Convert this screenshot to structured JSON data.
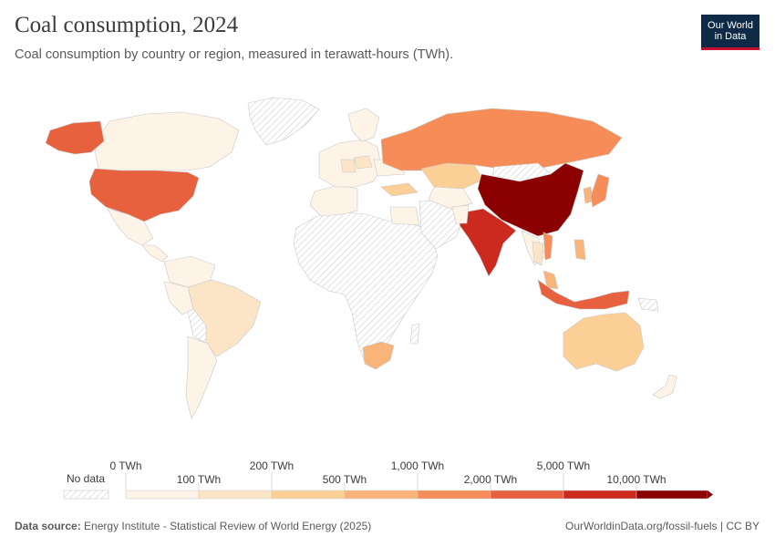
{
  "header": {
    "title": "Coal consumption, 2024",
    "subtitle": "Coal consumption by country or region, measured in terawatt-hours (TWh).",
    "logo_line1": "Our World",
    "logo_line2": "in Data"
  },
  "legend": {
    "no_data_label": "No data",
    "bins": [
      {
        "label": "0 TWh",
        "color": "#fdf3e7"
      },
      {
        "label": "100 TWh",
        "color": "#fce5c6"
      },
      {
        "label": "200 TWh",
        "color": "#fbcf96"
      },
      {
        "label": "500 TWh",
        "color": "#f9b47a"
      },
      {
        "label": "1,000 TWh",
        "color": "#f68d58"
      },
      {
        "label": "2,000 TWh",
        "color": "#e8613f"
      },
      {
        "label": "5,000 TWh",
        "color": "#cc2a1e"
      },
      {
        "label": "10,000 TWh",
        "color": "#8b0000"
      }
    ]
  },
  "colors": {
    "no_data": "#eeeeee",
    "border": "#c9c9c9",
    "text": "#3b3b3b"
  },
  "regions": [
    {
      "name": "China",
      "color": "#8b0000"
    },
    {
      "name": "India",
      "color": "#cc2a1e"
    },
    {
      "name": "United States",
      "color": "#e8613f"
    },
    {
      "name": "Indonesia",
      "color": "#e8613f"
    },
    {
      "name": "Russia",
      "color": "#f68d58"
    },
    {
      "name": "Japan",
      "color": "#f68d58"
    },
    {
      "name": "South Africa",
      "color": "#f9b47a"
    },
    {
      "name": "Australia",
      "color": "#fbcf96"
    },
    {
      "name": "Kazakhstan",
      "color": "#fbcf96"
    },
    {
      "name": "Vietnam",
      "color": "#f68d58"
    },
    {
      "name": "Turkey",
      "color": "#fbcf96"
    },
    {
      "name": "Brazil",
      "color": "#fce5c6"
    },
    {
      "name": "Canada",
      "color": "#fdf3e7"
    },
    {
      "name": "Alaska",
      "color": "#e8613f"
    }
  ],
  "footer": {
    "source_label": "Data source:",
    "source_text": "Energy Institute - Statistical Review of World Energy (2025)",
    "url": "OurWorldinData.org/fossil-fuels | CC BY"
  }
}
